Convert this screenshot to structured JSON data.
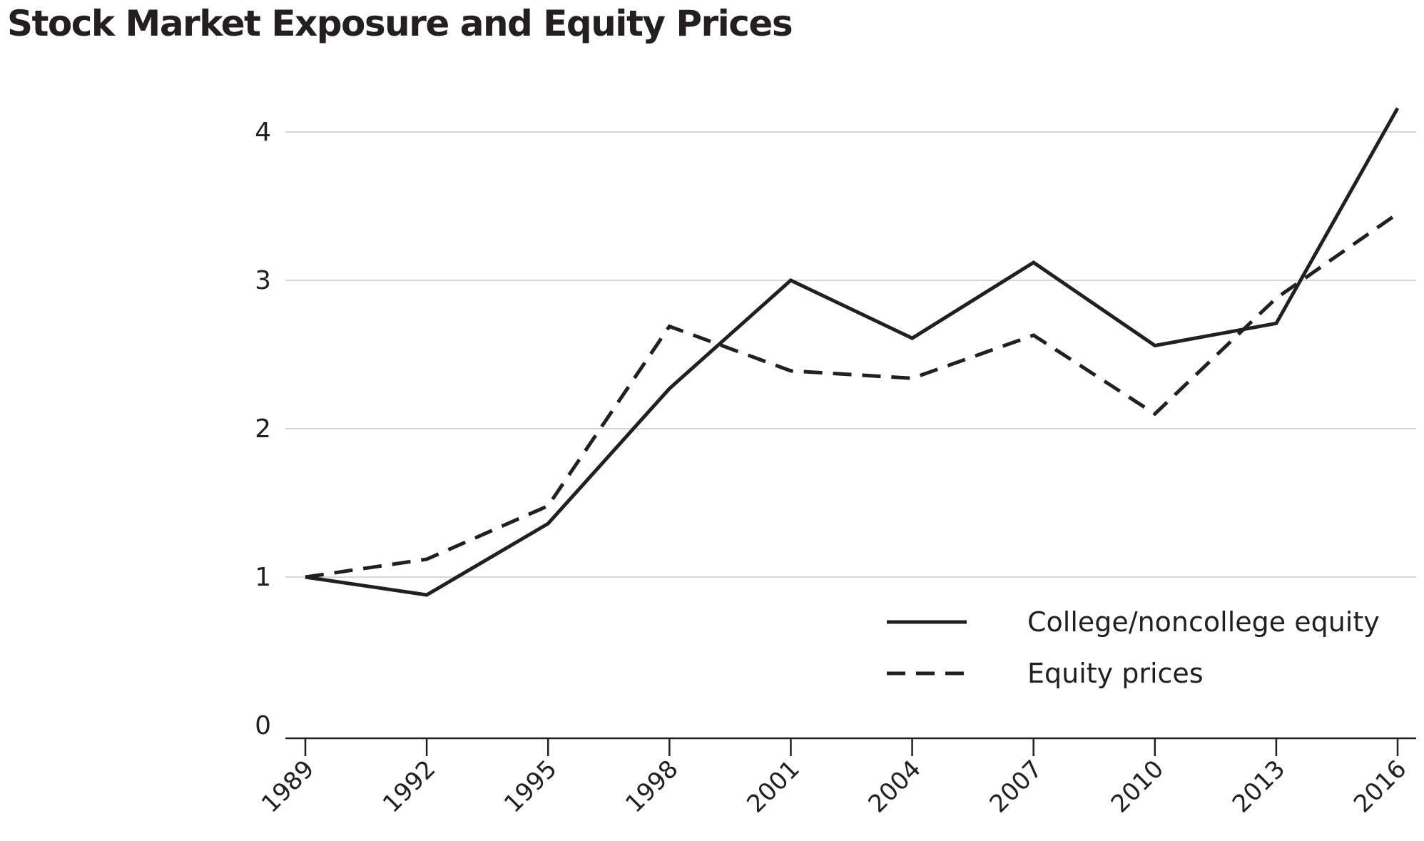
{
  "chart_data": {
    "type": "line",
    "title": "Stock Market Exposure and Equity Prices",
    "xlabel": "",
    "ylabel": "",
    "x": [
      1989,
      1992,
      1995,
      1998,
      2001,
      2004,
      2007,
      2010,
      2013,
      2016
    ],
    "x_tick_labels": [
      "1989",
      "1992",
      "1995",
      "1998",
      "2001",
      "2004",
      "2007",
      "2010",
      "2013",
      "2016"
    ],
    "y_ticks": [
      0,
      1,
      2,
      3,
      4
    ],
    "y_tick_labels": [
      "0",
      "1",
      "2",
      "3",
      "4"
    ],
    "ylim": [
      0,
      4.2
    ],
    "grid": "horizontal",
    "legend_position": "bottom-right",
    "series": [
      {
        "name": "College/noncollege equity",
        "style": "solid",
        "color": "#231f20",
        "values": [
          1.0,
          0.88,
          1.36,
          2.27,
          3.0,
          2.61,
          3.12,
          2.56,
          2.71,
          4.16
        ]
      },
      {
        "name": "Equity prices",
        "style": "dashed",
        "color": "#231f20",
        "values": [
          1.0,
          1.12,
          1.48,
          2.69,
          2.39,
          2.34,
          2.63,
          2.1,
          2.88,
          3.45
        ]
      }
    ]
  }
}
